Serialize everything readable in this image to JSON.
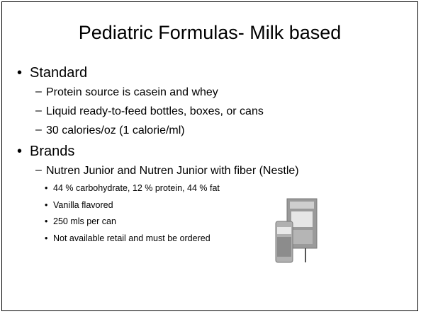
{
  "title": "Pediatric Formulas- Milk based",
  "items": [
    {
      "text": "Standard",
      "subitems": [
        {
          "text": "Protein source is casein and whey"
        },
        {
          "text": "Liquid ready-to-feed bottles, boxes, or cans"
        },
        {
          "text": "30 calories/oz (1 calorie/ml)"
        }
      ]
    },
    {
      "text": "Brands",
      "subitems": [
        {
          "text": "Nutren Junior and Nutren Junior with fiber (Nestle)",
          "subitems": [
            {
              "text": "44 % carbohydrate, 12 % protein, 44 % fat"
            },
            {
              "text": "Vanilla flavored"
            },
            {
              "text": "250 mls per can"
            },
            {
              "text": "Not available retail and must be ordered"
            }
          ]
        }
      ]
    }
  ]
}
